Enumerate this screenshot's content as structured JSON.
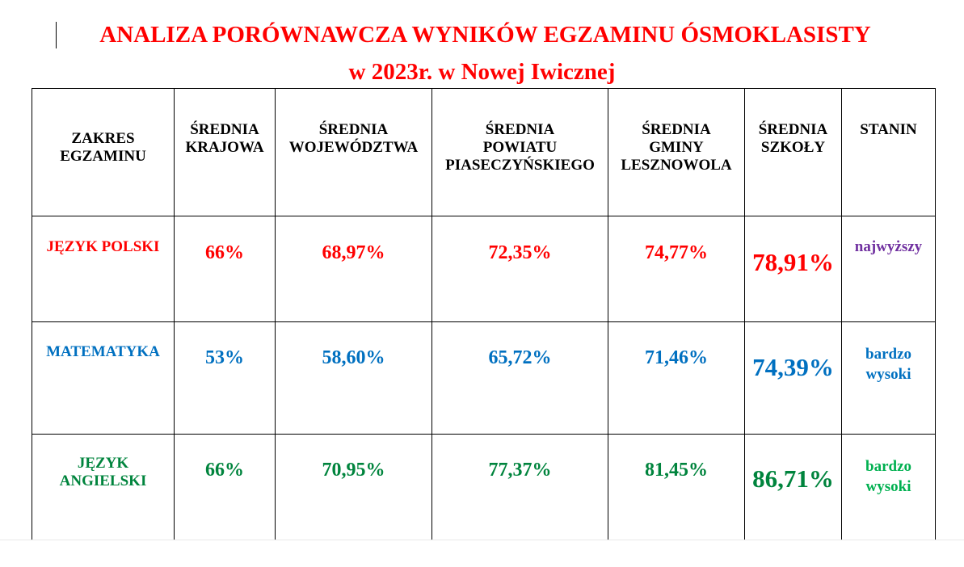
{
  "document": {
    "title_line1": "ANALIZA PORÓWNAWCZA WYNIKÓW EGZAMINU ÓSMOKLASISTY",
    "title_line2": "w 2023r. w Nowej Iwicznej"
  },
  "colors": {
    "title": "#ff0000",
    "polski": "#ff0000",
    "matematyka": "#0070c0",
    "angielski": "#00843d",
    "stanin_najwyzszy": "#7030a0",
    "stanin_angielski": "#00b050"
  },
  "table": {
    "headers": [
      "ZAKRES\nEGZAMINU",
      "ŚREDNIA\nKRAJOWA",
      "ŚREDNIA\nWOJEWÓDZTWA",
      "ŚREDNIA\nPOWIATU\nPIASECZYŃSKIEGO",
      "ŚREDNIA\nGMINY\nLESZNOWOLA",
      "ŚREDNIA\nSZKOŁY",
      "STANIN"
    ],
    "rows": [
      {
        "subject": "JĘZYK POLSKI",
        "krajowa": "66%",
        "wojewodztwa": "68,97%",
        "powiatu": "72,35%",
        "gminy": "74,77%",
        "szkoly": "78,91%",
        "stanin": "najwyższy"
      },
      {
        "subject": "MATEMATYKA",
        "krajowa": "53%",
        "wojewodztwa": "58,60%",
        "powiatu": "65,72%",
        "gminy": "71,46%",
        "szkoly": "74,39%",
        "stanin": "bardzo\nwysoki"
      },
      {
        "subject": "JĘZYK\nANGIELSKI",
        "krajowa": "66%",
        "wojewodztwa": "70,95%",
        "powiatu": "77,37%",
        "gminy": "81,45%",
        "szkoly": "86,71%",
        "stanin": "bardzo\nwysoki"
      }
    ]
  }
}
